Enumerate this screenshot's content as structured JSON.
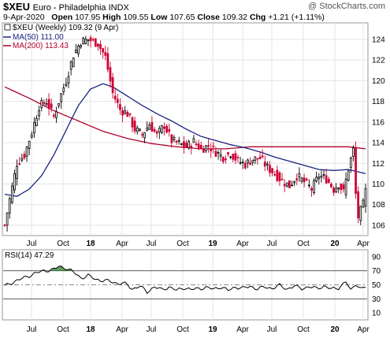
{
  "header": {
    "symbol": "$XEU",
    "description": "Euro - Philadelphia INDX",
    "watermark": "@ StockCharts.com",
    "date": "9-Apr-2020",
    "open_label": "Open",
    "open": "107.95",
    "high_label": "High",
    "high": "109.55",
    "low_label": "Low",
    "low": "107.65",
    "close_label": "Close",
    "close": "109.32",
    "chg_label": "Chg",
    "chg": "+1.21 (+1.11%)"
  },
  "legend": {
    "price": "$XEU (Weekly) 109.32 (9 Apr)",
    "ma50": "MA(50) 111.00",
    "ma200": "MA(200) 113.43",
    "rsi": "RSI(14) 47.29"
  },
  "colors": {
    "up": "#000000",
    "down": "#cc0033",
    "ma50": "#1a237e",
    "ma200": "#b0002a",
    "rsi_fill": "#2e7d32"
  },
  "chart_data": [
    {
      "type": "candlestick",
      "y_ticks": [
        106,
        108,
        110,
        112,
        114,
        116,
        118,
        120,
        122,
        124
      ],
      "ylim": [
        105,
        125.6
      ],
      "x_ticks": [
        "Jul",
        "Oct",
        "18",
        "Apr",
        "Jul",
        "Oct",
        "19",
        "Apr",
        "Jul",
        "Oct",
        "20",
        "Apr"
      ],
      "x_tick_bold": [
        "18",
        "19",
        "20"
      ],
      "close_anchors": [
        [
          0,
          106
        ],
        [
          2,
          108.5
        ],
        [
          5,
          112
        ],
        [
          8,
          112.8
        ],
        [
          11,
          115
        ],
        [
          14,
          117.5
        ],
        [
          17,
          118
        ],
        [
          20,
          116.5
        ],
        [
          22,
          118
        ],
        [
          25,
          120
        ],
        [
          28,
          122.5
        ],
        [
          31,
          123.8
        ],
        [
          34,
          124
        ],
        [
          38,
          123.6
        ],
        [
          41,
          122.3
        ],
        [
          44,
          118.8
        ],
        [
          47,
          117.2
        ],
        [
          50,
          116.8
        ],
        [
          53,
          115.3
        ],
        [
          56,
          114.8
        ],
        [
          59,
          115.8
        ],
        [
          62,
          114.7
        ],
        [
          65,
          115.7
        ],
        [
          68,
          114.2
        ],
        [
          71,
          113.9
        ],
        [
          74,
          113.6
        ],
        [
          77,
          114.1
        ],
        [
          80,
          113.4
        ],
        [
          83,
          113.7
        ],
        [
          86,
          113.1
        ],
        [
          89,
          112.6
        ],
        [
          92,
          113
        ],
        [
          95,
          112.2
        ],
        [
          98,
          111.9
        ],
        [
          101,
          112.4
        ],
        [
          104,
          112.5
        ],
        [
          107,
          111.6
        ],
        [
          110,
          111
        ],
        [
          113,
          110.3
        ],
        [
          116,
          109.8
        ],
        [
          119,
          110.8
        ],
        [
          122,
          110.2
        ],
        [
          125,
          109.5
        ],
        [
          128,
          110.8
        ],
        [
          131,
          110.5
        ],
        [
          134,
          109.5
        ],
        [
          136,
          110
        ],
        [
          138,
          109.2
        ],
        [
          140,
          111.5
        ],
        [
          142,
          113.3
        ],
        [
          143,
          109
        ],
        [
          144,
          106.8
        ],
        [
          146,
          108
        ],
        [
          147,
          109.3
        ]
      ],
      "ma50_anchors": [
        [
          0,
          109
        ],
        [
          5,
          108.8
        ],
        [
          10,
          109.5
        ],
        [
          15,
          110.8
        ],
        [
          20,
          112.8
        ],
        [
          25,
          115.2
        ],
        [
          30,
          117.6
        ],
        [
          35,
          119.2
        ],
        [
          40,
          119.7
        ],
        [
          44,
          119.4
        ],
        [
          50,
          118.5
        ],
        [
          56,
          117.6
        ],
        [
          62,
          116.8
        ],
        [
          68,
          116.1
        ],
        [
          74,
          115.3
        ],
        [
          80,
          114.6
        ],
        [
          86,
          114.2
        ],
        [
          92,
          113.8
        ],
        [
          98,
          113.5
        ],
        [
          104,
          113.1
        ],
        [
          110,
          112.6
        ],
        [
          116,
          112.2
        ],
        [
          122,
          111.8
        ],
        [
          128,
          111.4
        ],
        [
          134,
          111.3
        ],
        [
          140,
          111.4
        ],
        [
          147,
          111
        ]
      ],
      "ma200_anchors": [
        [
          0,
          119.4
        ],
        [
          10,
          118.3
        ],
        [
          20,
          117.1
        ],
        [
          30,
          116.1
        ],
        [
          40,
          115.1
        ],
        [
          50,
          114.4
        ],
        [
          60,
          113.9
        ],
        [
          70,
          113.6
        ],
        [
          80,
          113.4
        ],
        [
          90,
          113.4
        ],
        [
          100,
          113.6
        ],
        [
          110,
          113.6
        ],
        [
          120,
          113.6
        ],
        [
          130,
          113.6
        ],
        [
          140,
          113.6
        ],
        [
          147,
          113.4
        ]
      ]
    },
    {
      "type": "line",
      "name": "RSI(14)",
      "y_ticks": [
        10,
        30,
        50,
        70,
        90
      ],
      "ylim": [
        0,
        100
      ],
      "reference_lines": [
        30,
        50,
        70
      ],
      "anchors": [
        [
          0,
          48
        ],
        [
          4,
          55
        ],
        [
          8,
          60
        ],
        [
          12,
          66
        ],
        [
          16,
          70
        ],
        [
          20,
          72
        ],
        [
          22,
          76
        ],
        [
          25,
          74
        ],
        [
          28,
          68
        ],
        [
          31,
          60
        ],
        [
          34,
          63
        ],
        [
          37,
          58
        ],
        [
          40,
          56
        ],
        [
          43,
          55
        ],
        [
          46,
          52
        ],
        [
          48,
          52
        ],
        [
          50,
          50
        ],
        [
          52,
          44
        ],
        [
          55,
          48
        ],
        [
          58,
          40
        ],
        [
          61,
          47
        ],
        [
          64,
          43
        ],
        [
          67,
          47
        ],
        [
          70,
          42
        ],
        [
          73,
          46
        ],
        [
          76,
          43
        ],
        [
          79,
          45
        ],
        [
          82,
          46
        ],
        [
          85,
          44
        ],
        [
          88,
          47
        ],
        [
          91,
          42
        ],
        [
          94,
          47
        ],
        [
          97,
          45
        ],
        [
          100,
          48
        ],
        [
          103,
          44
        ],
        [
          106,
          47
        ],
        [
          109,
          45
        ],
        [
          112,
          49
        ],
        [
          115,
          44
        ],
        [
          118,
          48
        ],
        [
          121,
          45
        ],
        [
          124,
          47
        ],
        [
          127,
          45
        ],
        [
          130,
          48
        ],
        [
          133,
          44
        ],
        [
          136,
          46
        ],
        [
          139,
          54
        ],
        [
          141,
          42
        ],
        [
          143,
          52
        ],
        [
          145,
          44
        ],
        [
          147,
          47
        ]
      ]
    }
  ]
}
